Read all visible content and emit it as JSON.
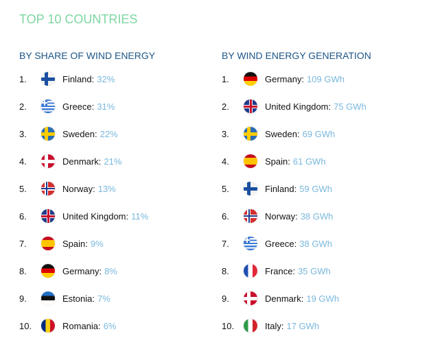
{
  "title": "TOP 10 COUNTRIES",
  "colors": {
    "title": "#7ed6a1",
    "heading": "#1d5687",
    "value": "#79b7dd"
  },
  "left": {
    "heading": "BY SHARE OF WIND ENERGY",
    "items": [
      {
        "rank": "1.",
        "country": "Finland:",
        "value": "32%",
        "flag": "fi"
      },
      {
        "rank": "2.",
        "country": "Greece:",
        "value": "31%",
        "flag": "gr"
      },
      {
        "rank": "3.",
        "country": "Sweden:",
        "value": "22%",
        "flag": "se"
      },
      {
        "rank": "4.",
        "country": "Denmark:",
        "value": "21%",
        "flag": "dk"
      },
      {
        "rank": "5.",
        "country": "Norway:",
        "value": "13%",
        "flag": "no"
      },
      {
        "rank": "6.",
        "country": "United Kingdom:",
        "value": "11%",
        "flag": "gb"
      },
      {
        "rank": "7.",
        "country": "Spain:",
        "value": "9%",
        "flag": "es"
      },
      {
        "rank": "8.",
        "country": "Germany:",
        "value": "8%",
        "flag": "de"
      },
      {
        "rank": "9.",
        "country": "Estonia:",
        "value": "7%",
        "flag": "ee"
      },
      {
        "rank": "10.",
        "country": "Romania:",
        "value": "6%",
        "flag": "ro"
      }
    ]
  },
  "right": {
    "heading": "BY WIND ENERGY GENERATION",
    "items": [
      {
        "rank": "1.",
        "country": "Germany:",
        "value": "109 GWh",
        "flag": "de"
      },
      {
        "rank": "2.",
        "country": "United Kingdom:",
        "value": "75 GWh",
        "flag": "gb"
      },
      {
        "rank": "3.",
        "country": "Sweden:",
        "value": "69 GWh",
        "flag": "se"
      },
      {
        "rank": "4.",
        "country": "Spain:",
        "value": "61 GWh",
        "flag": "es"
      },
      {
        "rank": "5.",
        "country": "Finland:",
        "value": "59 GWh",
        "flag": "fi"
      },
      {
        "rank": "6.",
        "country": "Norway:",
        "value": "38 GWh",
        "flag": "no"
      },
      {
        "rank": "7.",
        "country": "Greece:",
        "value": "38 GWh",
        "flag": "gr"
      },
      {
        "rank": "8.",
        "country": "France:",
        "value": "35 GWh",
        "flag": "fr"
      },
      {
        "rank": "9.",
        "country": "Denmark:",
        "value": "19 GWh",
        "flag": "dk"
      },
      {
        "rank": "10.",
        "country": "Italy:",
        "value": "17 GWh",
        "flag": "it"
      }
    ]
  }
}
